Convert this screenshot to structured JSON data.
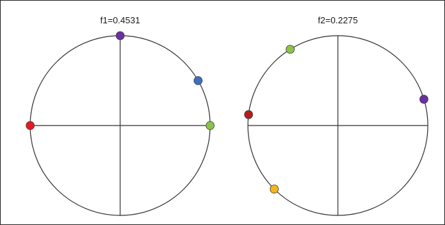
{
  "panels": [
    {
      "title": "f1=0.4531",
      "points": [
        {
          "angle_deg": 90,
          "color": "#6b2fa0"
        },
        {
          "angle_deg": 30,
          "color": "#3b6fc0"
        },
        {
          "angle_deg": 0,
          "color": "#8bc34a"
        },
        {
          "angle_deg": 180,
          "color": "#e31b23"
        }
      ]
    },
    {
      "title": "f2=0.2275",
      "points": [
        {
          "angle_deg": 122,
          "color": "#8bc34a"
        },
        {
          "angle_deg": 173,
          "color": "#b71c1c"
        },
        {
          "angle_deg": 225,
          "color": "#f5b51c"
        },
        {
          "angle_deg": 17,
          "color": "#6b2fa0"
        }
      ]
    }
  ]
}
